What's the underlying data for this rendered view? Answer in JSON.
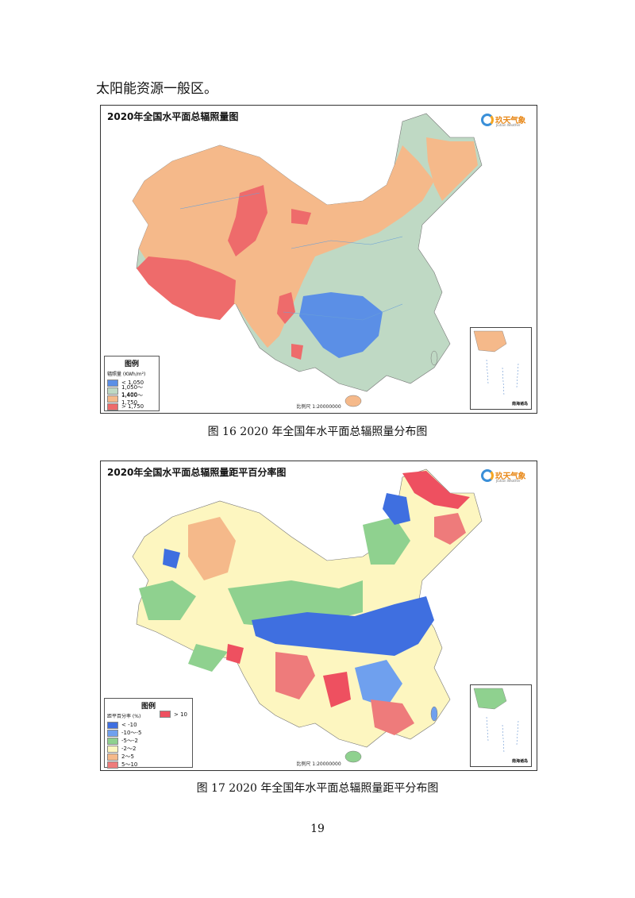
{
  "intro_text": "太阳能资源一般区。",
  "map1": {
    "title": "2020年全国水平面总辐照量图",
    "logo_text": "玖天气象",
    "logo_sub": "Jiutian Weather",
    "legend_title": "图例",
    "legend_subtitle": "辐照量 (KWh/m²)",
    "legend_items": [
      {
        "label": "< 1,050",
        "color": "#5b8fe6"
      },
      {
        "label": "1,050～1,400",
        "color": "#bfd9c4"
      },
      {
        "label": "1,400～1,750",
        "color": "#f5b98a"
      },
      {
        "label": "> 1,750",
        "color": "#ee6b6b"
      }
    ],
    "scale": "比例尺 1:20000000",
    "inset_label": "南海诸岛"
  },
  "caption1": "图 16    2020 年全国年水平面总辐照量分布图",
  "map2": {
    "title": "2020年全国水平面总辐照量距平百分率图",
    "logo_text": "玖天气象",
    "logo_sub": "Jiutian Weather",
    "legend_title": "图例",
    "legend_subtitle": "距平百分率 (%)",
    "legend_items": [
      {
        "label": "< -10",
        "color": "#3f6fe0"
      },
      {
        "label": "-10～-5",
        "color": "#6fa0ee"
      },
      {
        "label": "-5～-2",
        "color": "#8fd18f"
      },
      {
        "label": "-2～2",
        "color": "#fdf6c0"
      },
      {
        "label": "2～5",
        "color": "#f5b98a"
      },
      {
        "label": "5～10",
        "color": "#ee7b7b"
      }
    ],
    "legend_extra": {
      "label": "> 10",
      "color": "#ee5060"
    },
    "scale": "比例尺 1:20000000",
    "inset_label": "南海诸岛"
  },
  "caption2": "图 17    2020 年全国年水平面总辐照量距平分布图",
  "page_number": "19"
}
